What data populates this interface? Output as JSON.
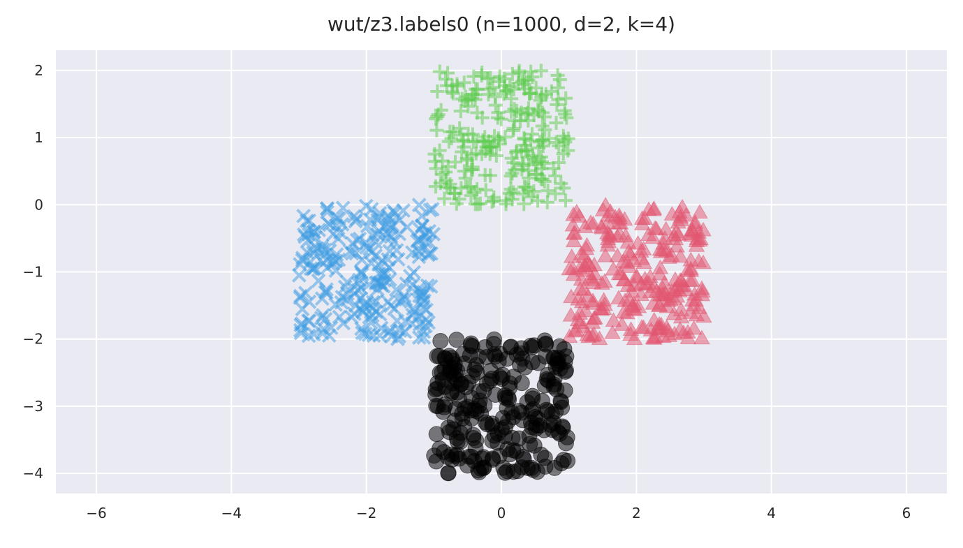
{
  "chart_data": {
    "type": "scatter",
    "title": "wut/z3.labels0 (n=1000, d=2, k=4)",
    "xlabel": "",
    "ylabel": "",
    "xlim": [
      -6.6,
      6.6
    ],
    "ylim": [
      -4.3,
      2.3
    ],
    "xticks": [
      -6,
      -4,
      -2,
      0,
      2,
      4,
      6
    ],
    "xtick_labels": [
      "−6",
      "−4",
      "−2",
      "0",
      "2",
      "4",
      "6"
    ],
    "yticks": [
      2,
      1,
      0,
      -1,
      -2,
      -3,
      -4
    ],
    "ytick_labels": [
      "2",
      "1",
      "0",
      "−1",
      "−2",
      "−3",
      "−4"
    ],
    "grid": true,
    "background": "#eaeaf2",
    "series": [
      {
        "marker": "plus",
        "color": "#5ccc4b",
        "count": 250,
        "x_range": [
          -1.0,
          1.0
        ],
        "y_range": [
          0.0,
          2.0
        ]
      },
      {
        "marker": "x",
        "color": "#3b9be1",
        "count": 250,
        "x_range": [
          -3.0,
          -1.0
        ],
        "y_range": [
          -2.0,
          0.0
        ]
      },
      {
        "marker": "triangle",
        "color": "#e2566f",
        "count": 250,
        "x_range": [
          1.0,
          3.0
        ],
        "y_range": [
          -2.0,
          0.0
        ]
      },
      {
        "marker": "circle",
        "color": "#000000",
        "count": 250,
        "x_range": [
          -1.0,
          1.0
        ],
        "y_range": [
          -4.0,
          -2.0
        ]
      }
    ]
  }
}
